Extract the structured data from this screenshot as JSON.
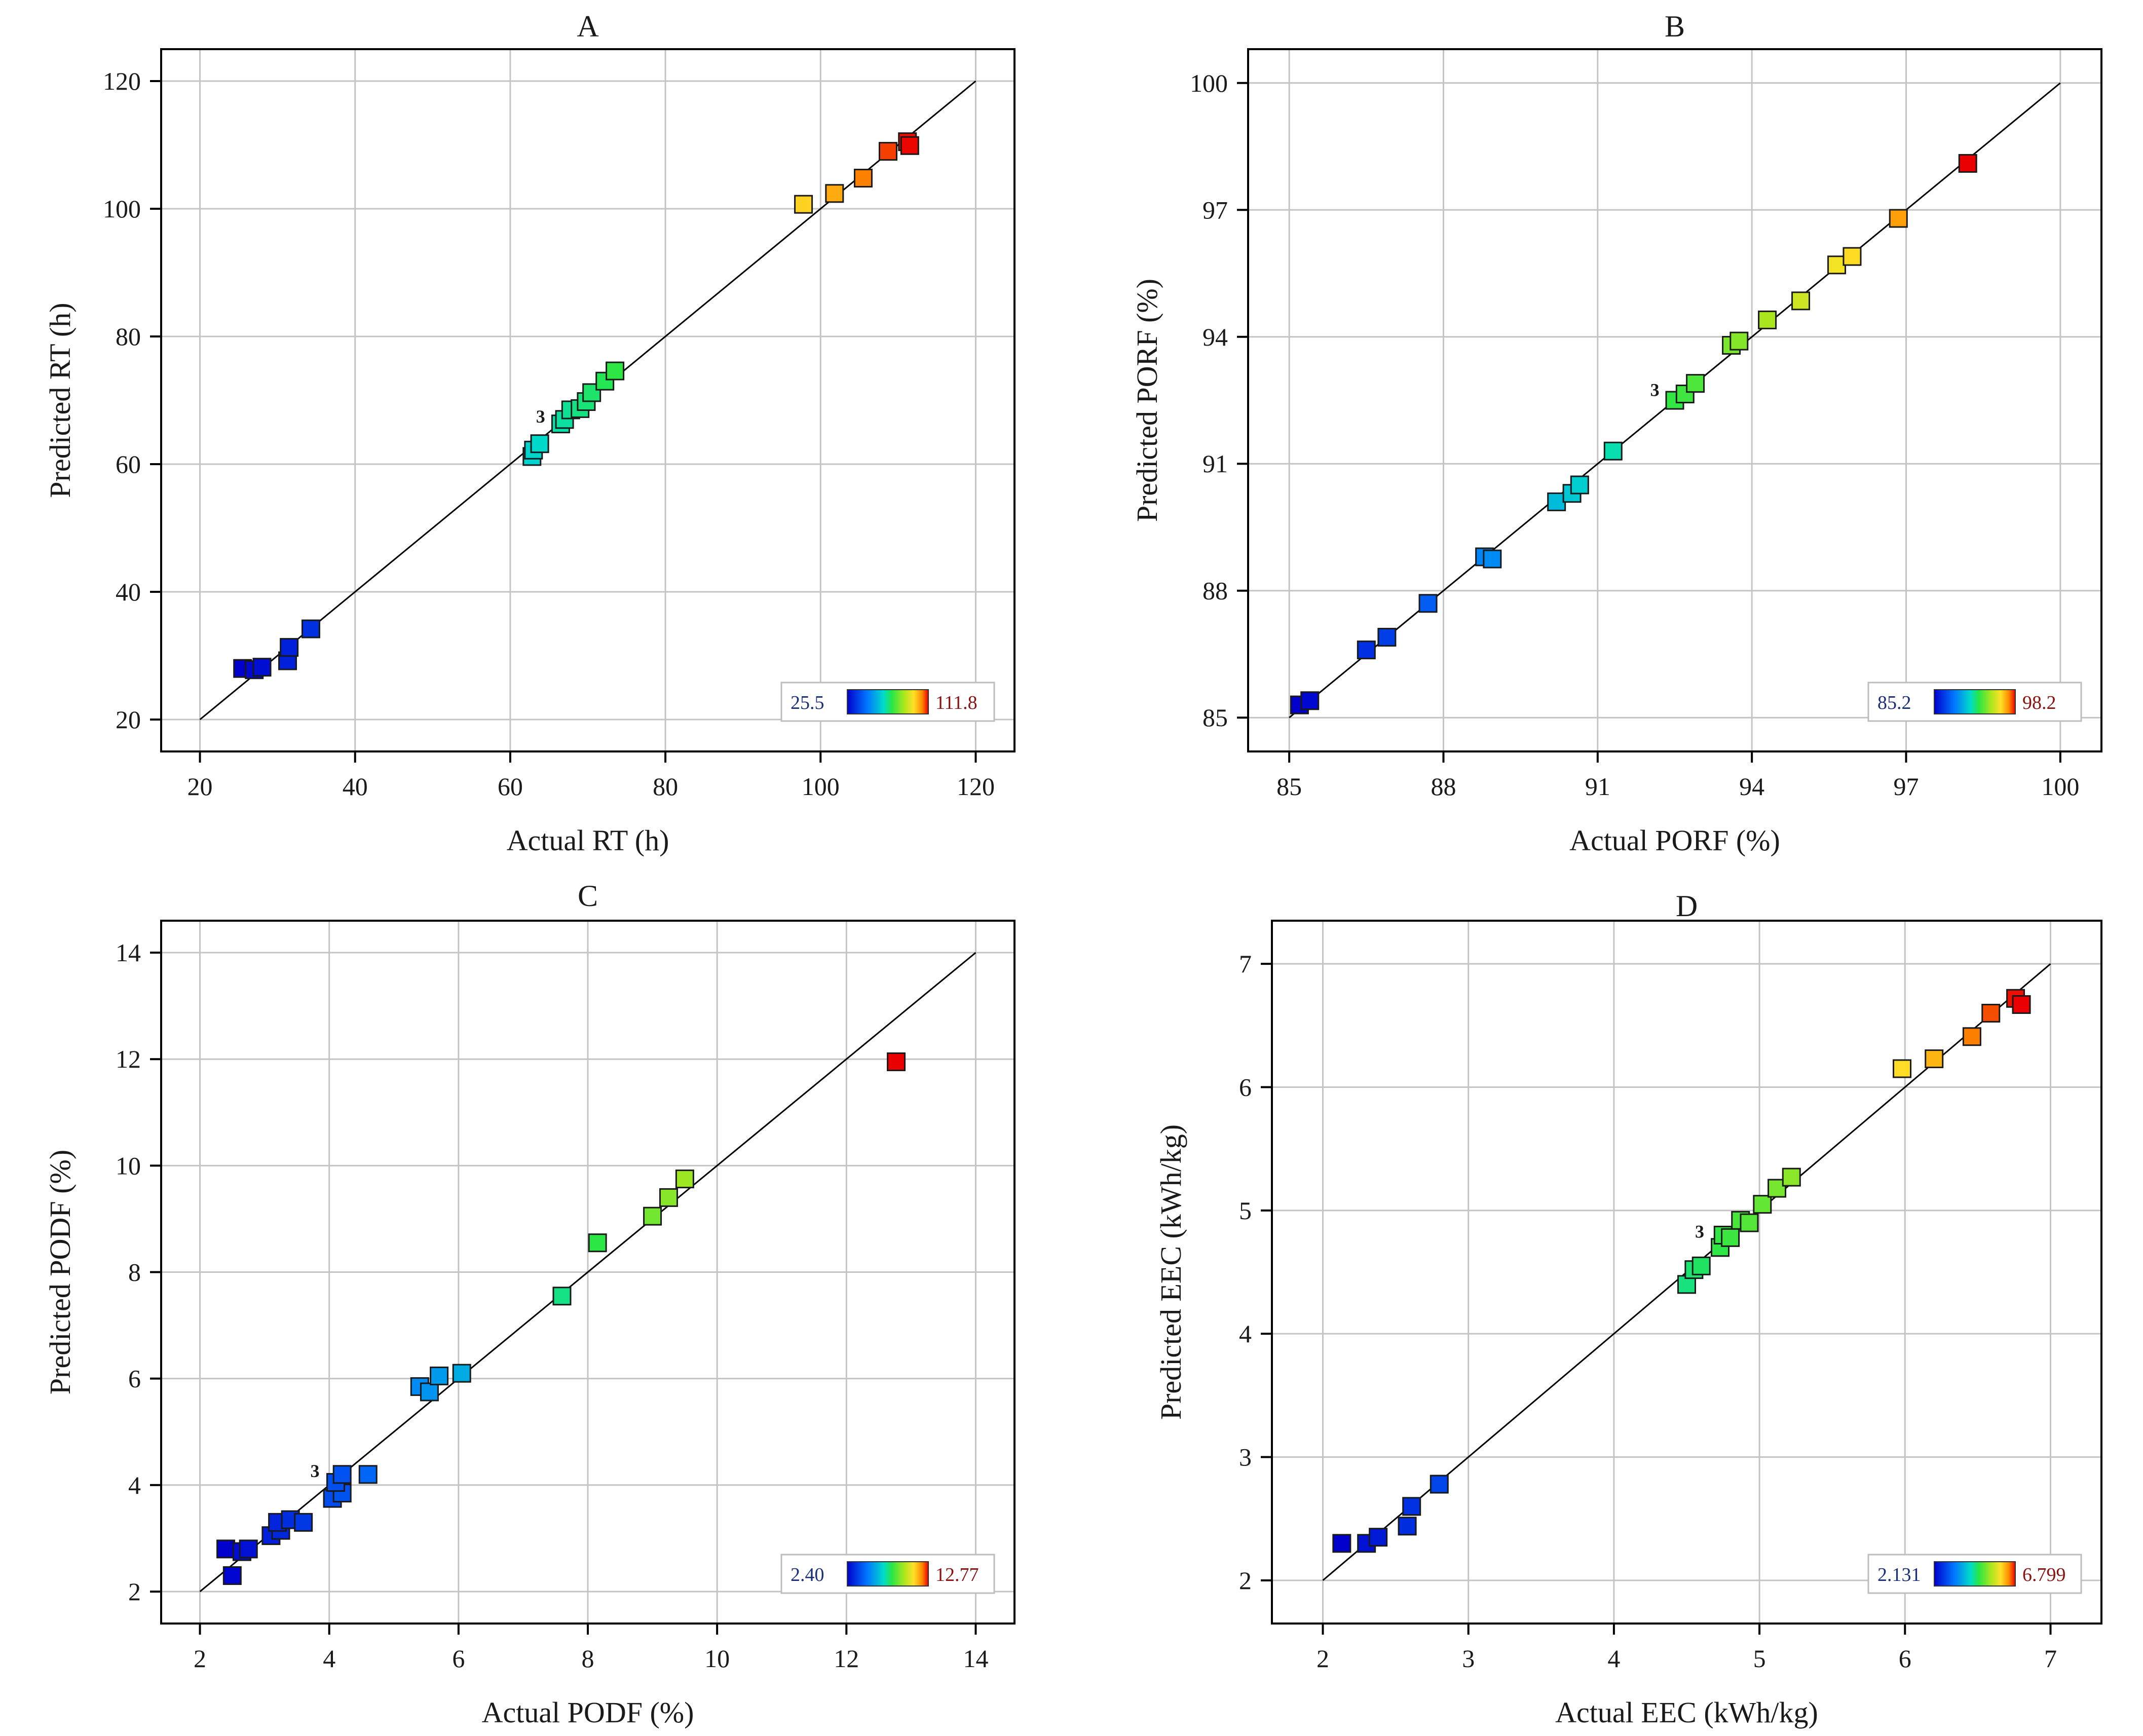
{
  "chart_data": [
    {
      "type": "scatter",
      "title": "A",
      "xlabel": "Actual RT (h)",
      "ylabel": "Predicted RT (h)",
      "xlim": [
        15,
        125
      ],
      "ylim": [
        15,
        125
      ],
      "xticks": [
        20,
        40,
        60,
        80,
        100,
        120
      ],
      "yticks": [
        20,
        40,
        60,
        80,
        100,
        120
      ],
      "tick_labels_x": [
        "20",
        "40",
        "60",
        "80",
        "100",
        "120"
      ],
      "tick_labels_y": [
        "20",
        "40",
        "60",
        "80",
        "100",
        "120"
      ],
      "grid": true,
      "diagonal": [
        20,
        120
      ],
      "legend": {
        "position": "bottom-right",
        "min_label": "25.5",
        "max_label": "111.8",
        "min": 25.5,
        "max": 111.8
      },
      "annotations": [
        {
          "text": "3",
          "x": 64.5,
          "y": 66.5
        }
      ],
      "points": [
        {
          "x": 25.5,
          "y": 28.0
        },
        {
          "x": 27.0,
          "y": 27.8
        },
        {
          "x": 28.0,
          "y": 28.2
        },
        {
          "x": 31.3,
          "y": 29.2
        },
        {
          "x": 31.5,
          "y": 31.3
        },
        {
          "x": 34.3,
          "y": 34.2
        },
        {
          "x": 62.8,
          "y": 61.2
        },
        {
          "x": 63.0,
          "y": 62.2
        },
        {
          "x": 63.8,
          "y": 63.2
        },
        {
          "x": 66.5,
          "y": 66.3
        },
        {
          "x": 67.0,
          "y": 67.0
        },
        {
          "x": 67.8,
          "y": 68.5
        },
        {
          "x": 69.0,
          "y": 68.7
        },
        {
          "x": 69.8,
          "y": 69.8
        },
        {
          "x": 70.5,
          "y": 71.2
        },
        {
          "x": 72.2,
          "y": 73.0
        },
        {
          "x": 73.5,
          "y": 74.6
        },
        {
          "x": 97.8,
          "y": 100.7
        },
        {
          "x": 101.8,
          "y": 102.4
        },
        {
          "x": 105.5,
          "y": 104.8
        },
        {
          "x": 108.7,
          "y": 109.0
        },
        {
          "x": 111.2,
          "y": 110.5
        },
        {
          "x": 111.5,
          "y": 109.9
        }
      ]
    },
    {
      "type": "scatter",
      "title": "B",
      "xlabel": "Actual PORF (%)",
      "ylabel": "Predicted PORF (%)",
      "xlim": [
        84.2,
        100.8
      ],
      "ylim": [
        84.2,
        100.8
      ],
      "xticks": [
        85,
        88,
        91,
        94,
        97,
        100
      ],
      "yticks": [
        85,
        88,
        91,
        94,
        97,
        100
      ],
      "tick_labels_x": [
        "85",
        "88",
        "91",
        "94",
        "97",
        "100"
      ],
      "tick_labels_y": [
        "85",
        "88",
        "91",
        "94",
        "97",
        "100"
      ],
      "grid": true,
      "diagonal": [
        85,
        100
      ],
      "legend": {
        "position": "bottom-right",
        "min_label": "85.2",
        "max_label": "98.2",
        "min": 85.2,
        "max": 98.2
      },
      "annotations": [
        {
          "text": "3",
          "x": 92.2,
          "y": 92.6
        }
      ],
      "points": [
        {
          "x": 85.2,
          "y": 85.3
        },
        {
          "x": 85.4,
          "y": 85.4
        },
        {
          "x": 86.5,
          "y": 86.6
        },
        {
          "x": 86.9,
          "y": 86.9
        },
        {
          "x": 87.7,
          "y": 87.7
        },
        {
          "x": 88.8,
          "y": 88.8
        },
        {
          "x": 88.95,
          "y": 88.75
        },
        {
          "x": 90.2,
          "y": 90.1
        },
        {
          "x": 90.5,
          "y": 90.3
        },
        {
          "x": 90.65,
          "y": 90.5
        },
        {
          "x": 91.3,
          "y": 91.3
        },
        {
          "x": 92.5,
          "y": 92.5
        },
        {
          "x": 92.7,
          "y": 92.65
        },
        {
          "x": 92.9,
          "y": 92.9
        },
        {
          "x": 93.6,
          "y": 93.8
        },
        {
          "x": 93.75,
          "y": 93.9
        },
        {
          "x": 94.3,
          "y": 94.4
        },
        {
          "x": 94.95,
          "y": 94.85
        },
        {
          "x": 95.65,
          "y": 95.7
        },
        {
          "x": 95.95,
          "y": 95.9
        },
        {
          "x": 96.85,
          "y": 96.8
        },
        {
          "x": 98.2,
          "y": 98.1
        }
      ]
    },
    {
      "type": "scatter",
      "title": "C",
      "xlabel": "Actual PODF (%)",
      "ylabel": "Predicted PODF (%)",
      "xlim": [
        1.4,
        14.6
      ],
      "ylim": [
        1.4,
        14.6
      ],
      "xticks": [
        2,
        4,
        6,
        8,
        10,
        12,
        14
      ],
      "yticks": [
        2,
        4,
        6,
        8,
        10,
        12,
        14
      ],
      "tick_labels_x": [
        "2",
        "4",
        "6",
        "8",
        "10",
        "12",
        "14"
      ],
      "tick_labels_y": [
        "2",
        "4",
        "6",
        "8",
        "10",
        "12",
        "14"
      ],
      "grid": true,
      "diagonal": [
        2,
        14
      ],
      "legend": {
        "position": "bottom-right",
        "min_label": "2.40",
        "max_label": "12.77",
        "min": 2.4,
        "max": 12.77
      },
      "annotations": [
        {
          "text": "3",
          "x": 3.85,
          "y": 4.15
        }
      ],
      "points": [
        {
          "x": 2.4,
          "y": 2.8
        },
        {
          "x": 2.5,
          "y": 2.3
        },
        {
          "x": 2.65,
          "y": 2.75
        },
        {
          "x": 2.75,
          "y": 2.8
        },
        {
          "x": 3.1,
          "y": 3.05
        },
        {
          "x": 3.25,
          "y": 3.15
        },
        {
          "x": 3.2,
          "y": 3.3
        },
        {
          "x": 3.4,
          "y": 3.35
        },
        {
          "x": 3.6,
          "y": 3.3
        },
        {
          "x": 4.05,
          "y": 3.75
        },
        {
          "x": 4.2,
          "y": 3.85
        },
        {
          "x": 4.1,
          "y": 4.05
        },
        {
          "x": 4.2,
          "y": 4.2
        },
        {
          "x": 4.6,
          "y": 4.2
        },
        {
          "x": 5.4,
          "y": 5.85
        },
        {
          "x": 5.55,
          "y": 5.75
        },
        {
          "x": 5.7,
          "y": 6.05
        },
        {
          "x": 6.05,
          "y": 6.1
        },
        {
          "x": 7.6,
          "y": 7.55
        },
        {
          "x": 8.15,
          "y": 8.55
        },
        {
          "x": 9.0,
          "y": 9.05
        },
        {
          "x": 9.25,
          "y": 9.4
        },
        {
          "x": 9.5,
          "y": 9.75
        },
        {
          "x": 12.77,
          "y": 11.95
        }
      ]
    },
    {
      "type": "scatter",
      "title": "D",
      "xlabel": "Actual EEC (kWh/kg)",
      "ylabel": "Predicted EEC (kWh/kg)",
      "xlim": [
        1.65,
        7.35
      ],
      "ylim": [
        1.65,
        7.35
      ],
      "xticks": [
        2,
        3,
        4,
        5,
        6,
        7
      ],
      "yticks": [
        2,
        3,
        4,
        5,
        6,
        7
      ],
      "tick_labels_x": [
        "2",
        "3",
        "4",
        "5",
        "6",
        "7"
      ],
      "tick_labels_y": [
        "2",
        "3",
        "4",
        "5",
        "6",
        "7"
      ],
      "grid": true,
      "diagonal": [
        2,
        7
      ],
      "legend": {
        "position": "bottom-right",
        "min_label": "2.131",
        "max_label": "6.799",
        "min": 2.131,
        "max": 6.799
      },
      "annotations": [
        {
          "text": "3",
          "x": 4.62,
          "y": 4.78
        }
      ],
      "points": [
        {
          "x": 2.13,
          "y": 2.3
        },
        {
          "x": 2.3,
          "y": 2.3
        },
        {
          "x": 2.38,
          "y": 2.35
        },
        {
          "x": 2.58,
          "y": 2.44
        },
        {
          "x": 2.61,
          "y": 2.6
        },
        {
          "x": 2.8,
          "y": 2.78
        },
        {
          "x": 4.5,
          "y": 4.4
        },
        {
          "x": 4.55,
          "y": 4.52
        },
        {
          "x": 4.6,
          "y": 4.55
        },
        {
          "x": 4.73,
          "y": 4.7
        },
        {
          "x": 4.75,
          "y": 4.8
        },
        {
          "x": 4.8,
          "y": 4.78
        },
        {
          "x": 4.87,
          "y": 4.92
        },
        {
          "x": 4.93,
          "y": 4.9
        },
        {
          "x": 5.02,
          "y": 5.05
        },
        {
          "x": 5.12,
          "y": 5.18
        },
        {
          "x": 5.22,
          "y": 5.27
        },
        {
          "x": 5.98,
          "y": 6.15
        },
        {
          "x": 6.2,
          "y": 6.23
        },
        {
          "x": 6.46,
          "y": 6.41
        },
        {
          "x": 6.59,
          "y": 6.6
        },
        {
          "x": 6.76,
          "y": 6.72
        },
        {
          "x": 6.8,
          "y": 6.67
        }
      ]
    }
  ]
}
